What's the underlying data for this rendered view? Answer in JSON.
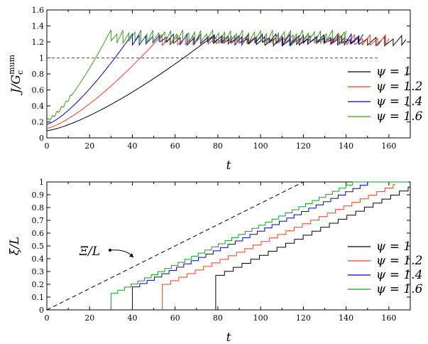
{
  "chart_data": [
    {
      "type": "line",
      "xlabel": "t",
      "ylabel": "J/G_c^mum",
      "xlim": [
        0,
        170
      ],
      "ylim": [
        0,
        1.6
      ],
      "xticks": [
        "0",
        "20",
        "40",
        "60",
        "80",
        "100",
        "120",
        "140",
        "160"
      ],
      "yticks": [
        "0",
        "0.2",
        "0.4",
        "0.6",
        "0.8",
        "1",
        "1.2",
        "1.4",
        "1.6"
      ],
      "reference_line": {
        "y": 1.0,
        "style": "dashed"
      },
      "legend_position": "right",
      "series": [
        {
          "name": "ψ = 1",
          "color": "#000000",
          "J0": 0.09,
          "t_c": 78,
          "t_end": 168,
          "plateau": [
            1.15,
            1.28
          ],
          "tooth_period": 4.0
        },
        {
          "name": "ψ = 1.2",
          "color": "#ff3b1f",
          "J0": 0.12,
          "t_c": 54,
          "t_end": 160,
          "plateau": [
            1.15,
            1.29
          ],
          "tooth_period": 3.6
        },
        {
          "name": "ψ = 1.4",
          "color": "#0000c8",
          "J0": 0.17,
          "t_c": 40,
          "t_end": 148,
          "plateau": [
            1.16,
            1.3
          ],
          "tooth_period": 3.2
        },
        {
          "name": "ψ = 1.6",
          "color": "#3a9e1a",
          "J0": 0.22,
          "t_c": 30,
          "t_end": 140,
          "plateau": [
            1.18,
            1.35
          ],
          "tooth_period": 2.8
        }
      ]
    },
    {
      "type": "line",
      "xlabel": "t",
      "ylabel": "ξ/L",
      "xlim": [
        0,
        170
      ],
      "ylim": [
        0,
        1
      ],
      "xticks": [
        "0",
        "20",
        "40",
        "60",
        "80",
        "100",
        "120",
        "140",
        "160"
      ],
      "yticks": [
        "0",
        "0.1",
        "0.2",
        "0.3",
        "0.4",
        "0.5",
        "0.6",
        "0.7",
        "0.8",
        "0.9",
        "1"
      ],
      "reference_line": {
        "name": "Ξ/L",
        "x": [
          0,
          120
        ],
        "y": [
          0,
          1.0
        ],
        "style": "dashed"
      },
      "annotation": "Ξ/L",
      "legend_position": "right",
      "series": [
        {
          "name": "ψ = 1",
          "color": "#000000",
          "t_start": 79,
          "y_start": 0.27,
          "t_end": 169,
          "y_end": 0.96,
          "steps": 22
        },
        {
          "name": "ψ = 1.2",
          "color": "#ff3b1f",
          "t_start": 54,
          "y_start": 0.2,
          "t_end": 162,
          "y_end": 0.98,
          "steps": 28
        },
        {
          "name": "ψ = 1.4",
          "color": "#0000c8",
          "t_start": 40,
          "y_start": 0.18,
          "t_end": 150,
          "y_end": 1.0,
          "steps": 32
        },
        {
          "name": "ψ = 1.6",
          "color": "#10a020",
          "t_start": 30,
          "y_start": 0.13,
          "t_end": 143,
          "y_end": 1.0,
          "steps": 36
        }
      ]
    }
  ],
  "legend_label_top": [
    "ψ = 1",
    "ψ = 1.2",
    "ψ = 1.4",
    "ψ = 1.6"
  ],
  "legend_label_bottom": [
    "ψ = 1",
    "ψ = 1.2",
    "ψ = 1.4",
    "ψ = 1.6"
  ]
}
